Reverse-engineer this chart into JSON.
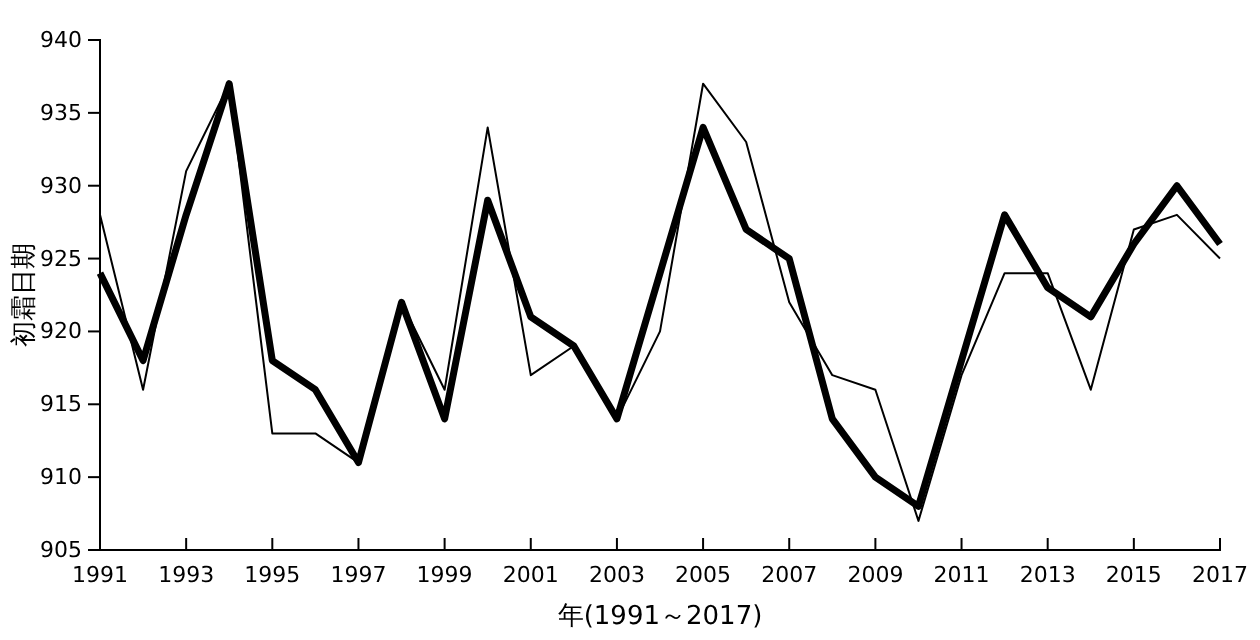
{
  "chart_data": {
    "type": "line",
    "xlabel": "年(1991～2017)",
    "ylabel": "初霜日期",
    "x": [
      1991,
      1992,
      1993,
      1994,
      1995,
      1996,
      1997,
      1998,
      1999,
      2000,
      2001,
      2002,
      2003,
      2004,
      2005,
      2006,
      2007,
      2008,
      2009,
      2010,
      2011,
      2012,
      2013,
      2014,
      2015,
      2016,
      2017
    ],
    "series": [
      {
        "color": "#000000",
        "values": [
          928,
          916,
          931,
          937,
          913,
          913,
          911,
          922,
          916,
          934,
          917,
          919,
          914,
          920,
          937,
          933,
          922,
          917,
          916,
          907,
          917,
          924,
          924,
          916,
          927,
          928,
          925
        ]
      },
      {
        "color": "#000000",
        "values": [
          924,
          918,
          928,
          937,
          918,
          916,
          911,
          922,
          914,
          929,
          921,
          919,
          914,
          924,
          934,
          927,
          925,
          914,
          910,
          908,
          918,
          928,
          923,
          921,
          926,
          930,
          926
        ]
      }
    ],
    "xlim": [
      1991,
      2017
    ],
    "xticks": [
      1991,
      1993,
      1995,
      1997,
      1999,
      2001,
      2003,
      2005,
      2007,
      2009,
      2011,
      2013,
      2015,
      2017
    ],
    "ylim": [
      905,
      940
    ],
    "yticks": [
      905,
      910,
      915,
      920,
      925,
      930,
      935,
      940
    ],
    "grid": false,
    "marker": "none",
    "line_style": "solid"
  }
}
